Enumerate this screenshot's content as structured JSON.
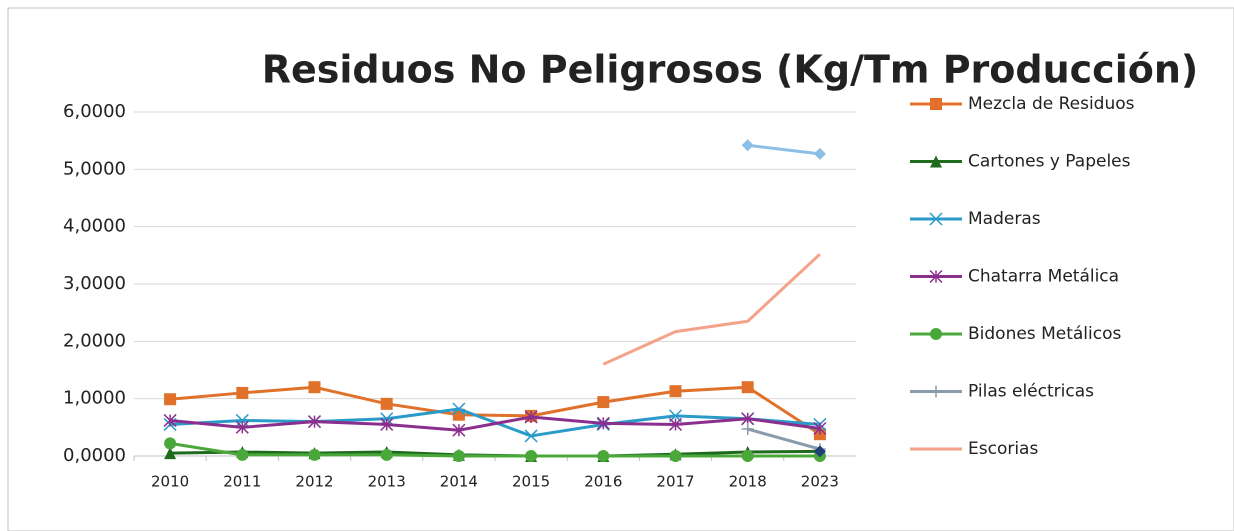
{
  "chart_data": {
    "type": "line",
    "title": "Residuos No Peligrosos (Kg/Tm Producción)",
    "categories": [
      "2010",
      "2011",
      "2012",
      "2013",
      "2014",
      "2015",
      "2016",
      "2017",
      "2018",
      "2023"
    ],
    "ylim": [
      0,
      6
    ],
    "yticks": [
      {
        "value": 0,
        "label": "0,0000"
      },
      {
        "value": 1,
        "label": "1,0000"
      },
      {
        "value": 2,
        "label": "2,0000"
      },
      {
        "value": 3,
        "label": "3,0000"
      },
      {
        "value": 4,
        "label": "4,0000"
      },
      {
        "value": 5,
        "label": "5,0000"
      },
      {
        "value": 6,
        "label": "6,0000"
      }
    ],
    "grid": true,
    "legend": "right",
    "series": [
      {
        "name": "Mezcla de Residuos",
        "color": "#e0702a",
        "marker": "square",
        "values": [
          0.99,
          1.1,
          1.2,
          0.91,
          0.72,
          0.7,
          0.94,
          1.13,
          1.2,
          0.38
        ]
      },
      {
        "name": "Cartones y Papeles",
        "color": "#1e6b1e",
        "marker": "triangle",
        "values": [
          0.05,
          0.07,
          0.05,
          0.07,
          0.02,
          0.0,
          0.0,
          0.03,
          0.07,
          0.08
        ]
      },
      {
        "name": "Maderas",
        "color": "#2a9bc8",
        "marker": "x",
        "values": [
          0.55,
          0.62,
          0.6,
          0.65,
          0.82,
          0.35,
          0.55,
          0.7,
          0.65,
          0.55
        ]
      },
      {
        "name": "Chatarra Metálica",
        "color": "#8b2f8f",
        "marker": "star",
        "values": [
          0.62,
          0.5,
          0.6,
          0.55,
          0.45,
          0.68,
          0.57,
          0.55,
          0.65,
          0.48
        ]
      },
      {
        "name": "Bidones Metálicos",
        "color": "#4aa83a",
        "marker": "circle",
        "values": [
          0.22,
          0.02,
          0.02,
          0.02,
          0.0,
          0.0,
          0.0,
          0.0,
          0.0,
          0.0
        ]
      },
      {
        "name": "Pilas eléctricas",
        "color": "#8a9cab",
        "marker": "plus",
        "values": [
          null,
          null,
          null,
          null,
          null,
          null,
          null,
          null,
          0.47,
          0.12
        ]
      },
      {
        "name": "Escorias",
        "color": "#f4a28a",
        "marker": "none",
        "values": [
          null,
          null,
          null,
          null,
          null,
          null,
          1.6,
          2.17,
          2.35,
          3.52
        ]
      },
      {
        "color": "#8cbfe6",
        "marker": "diamond",
        "values": [
          null,
          null,
          null,
          null,
          null,
          null,
          null,
          null,
          5.42,
          5.27
        ]
      },
      {
        "color": "#1f3f7a",
        "marker": "diamond",
        "values": [
          null,
          null,
          null,
          null,
          null,
          null,
          null,
          null,
          null,
          0.08
        ]
      }
    ]
  }
}
